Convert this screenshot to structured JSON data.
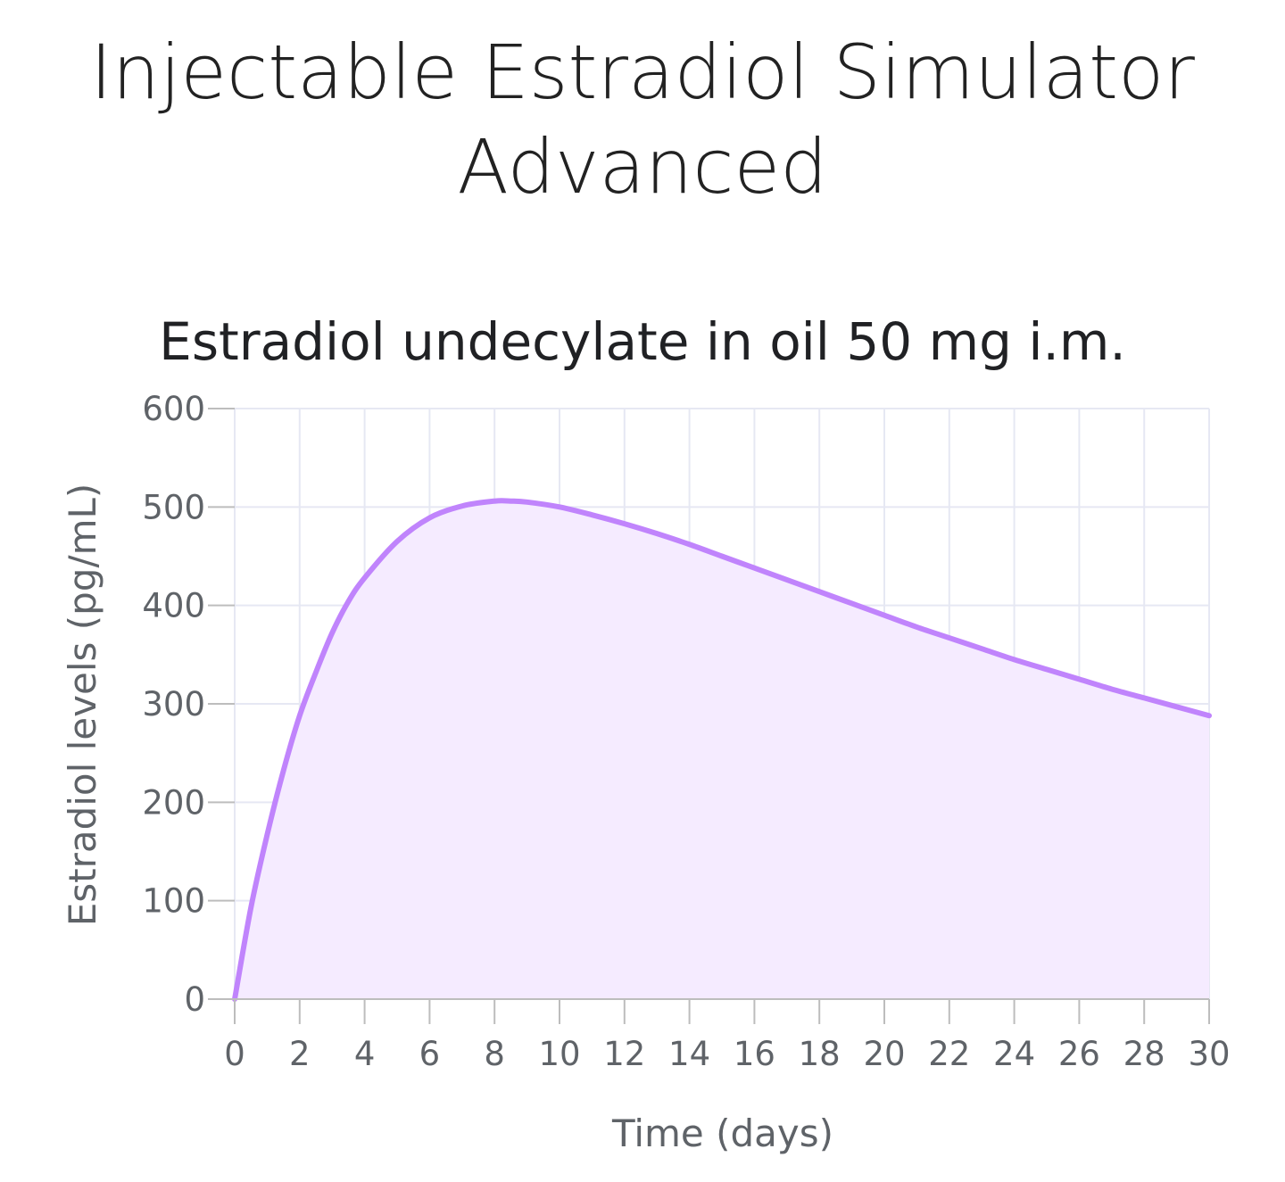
{
  "page": {
    "title_line1": "Injectable Estradiol Simulator",
    "title_line2": "Advanced"
  },
  "chart_data": {
    "type": "area",
    "title": "Estradiol undecylate in oil 50 mg i.m.",
    "xlabel": "Time (days)",
    "ylabel": "Estradiol levels (pg/mL)",
    "xlim": [
      0,
      30
    ],
    "ylim": [
      0,
      600
    ],
    "x_ticks": [
      "0",
      "2",
      "4",
      "6",
      "8",
      "10",
      "12",
      "14",
      "16",
      "18",
      "20",
      "22",
      "24",
      "26",
      "28",
      "30"
    ],
    "y_ticks": [
      "0",
      "100",
      "200",
      "300",
      "400",
      "500",
      "600"
    ],
    "grid": true,
    "series": [
      {
        "x": [
          0,
          0.5,
          1,
          1.5,
          2,
          2.5,
          3,
          3.5,
          4,
          5,
          6,
          7,
          8,
          8.5,
          9,
          10,
          11,
          12,
          13,
          14,
          15,
          16,
          17,
          18,
          19,
          20,
          21,
          22,
          23,
          24,
          25,
          26,
          27,
          28,
          29,
          30
        ],
        "y": [
          0,
          93,
          167,
          232,
          288,
          332,
          372,
          404,
          428,
          465,
          489,
          501,
          506,
          506,
          505,
          500,
          492,
          483,
          473,
          462,
          450,
          438,
          426,
          414,
          402,
          390,
          378,
          367,
          356,
          345,
          335,
          325,
          315,
          306,
          297,
          288
        ]
      }
    ],
    "colors": {
      "line": "#c084fc",
      "fill": "#f5ebff",
      "grid": "#e6e8f3",
      "axis": "#bdbdbd",
      "tick_text": "#5f6368"
    }
  }
}
